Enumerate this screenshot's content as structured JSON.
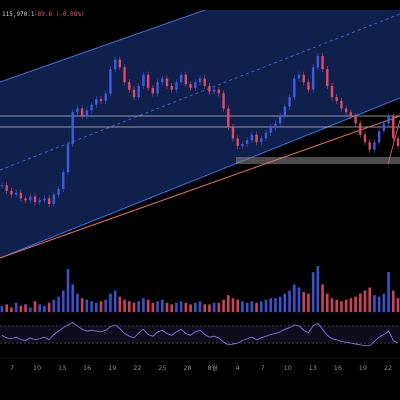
{
  "header": {
    "price_text": "115,970.1",
    "change_text": "-89.6 (-0.08%)"
  },
  "colors": {
    "channel_fill": "#13265a",
    "channel_line": "#3f6fe0",
    "bull": "#3f5be0",
    "bear": "#e04a63",
    "rsi_line": "#7f73e8",
    "support_band": "#8a8a8a",
    "trendline": "#e8706a",
    "bg": "#000000"
  },
  "chart_data": [
    {
      "type": "line",
      "panel": "price",
      "series": [
        {
          "values": [
            33,
            30,
            28,
            29,
            26,
            25,
            27,
            24,
            25,
            26,
            23,
            28,
            31,
            40,
            55,
            72,
            74,
            70,
            73,
            76,
            79,
            78,
            82,
            95,
            100,
            96,
            88,
            84,
            80,
            86,
            92,
            85,
            82,
            88,
            90,
            86,
            84,
            88,
            92,
            87,
            85,
            88,
            90,
            86,
            83,
            84,
            82,
            74,
            64,
            58,
            54,
            55,
            57,
            60,
            56,
            58,
            61,
            64,
            66,
            70,
            75,
            80,
            90,
            92,
            88,
            84,
            96,
            102,
            95,
            86,
            80,
            78,
            74,
            72,
            70,
            66,
            60,
            56,
            52,
            56,
            62,
            66,
            70,
            58,
            54
          ]
        }
      ],
      "y_scale": "linear",
      "grid": false,
      "overlays": [
        "ascending channel",
        "dashed midline",
        "support band",
        "trendline"
      ]
    },
    {
      "type": "bar",
      "panel": "volume",
      "values": [
        4,
        5,
        3,
        6,
        4,
        5,
        3,
        7,
        5,
        4,
        6,
        8,
        10,
        14,
        28,
        18,
        12,
        9,
        8,
        7,
        6,
        7,
        8,
        12,
        14,
        10,
        8,
        7,
        6,
        7,
        9,
        8,
        6,
        7,
        8,
        6,
        5,
        6,
        7,
        6,
        5,
        6,
        7,
        5,
        5,
        6,
        6,
        8,
        11,
        9,
        8,
        7,
        6,
        7,
        6,
        7,
        8,
        9,
        9,
        10,
        12,
        14,
        18,
        16,
        13,
        12,
        26,
        30,
        18,
        12,
        9,
        8,
        7,
        8,
        9,
        10,
        12,
        14,
        16,
        11,
        10,
        12,
        26,
        14,
        9
      ]
    },
    {
      "type": "line",
      "panel": "rsi",
      "values": [
        48,
        42,
        40,
        44,
        38,
        36,
        42,
        38,
        40,
        44,
        38,
        50,
        58,
        66,
        72,
        78,
        70,
        62,
        58,
        60,
        58,
        56,
        60,
        68,
        72,
        64,
        52,
        46,
        42,
        54,
        62,
        50,
        46,
        56,
        60,
        52,
        48,
        56,
        62,
        52,
        48,
        56,
        60,
        50,
        44,
        46,
        42,
        32,
        26,
        28,
        30,
        36,
        40,
        44,
        38,
        42,
        46,
        50,
        52,
        56,
        62,
        66,
        72,
        70,
        60,
        54,
        70,
        76,
        62,
        48,
        40,
        38,
        34,
        32,
        30,
        28,
        26,
        24,
        24,
        34,
        44,
        50,
        58,
        36,
        30
      ],
      "levels": [
        70,
        30
      ]
    }
  ],
  "x_axis": {
    "ticks": [
      "7",
      "10",
      "13",
      "16",
      "19",
      "22",
      "25",
      "28",
      "8월",
      "4",
      "7",
      "10",
      "13",
      "16",
      "19",
      "22"
    ]
  }
}
